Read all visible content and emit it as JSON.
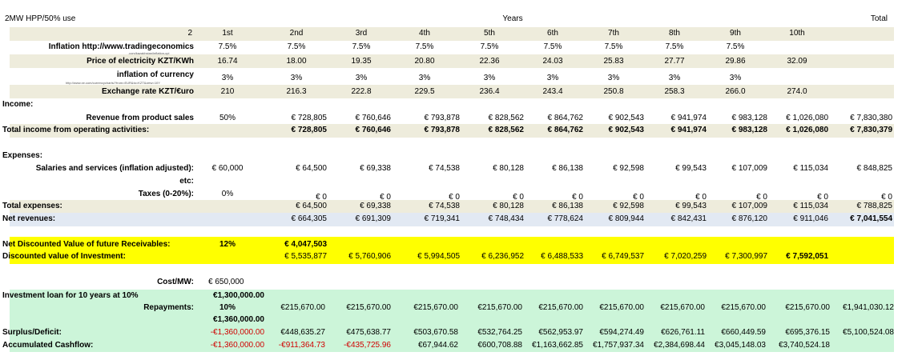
{
  "header": {
    "title": "2MW HPP/50% use",
    "years_label": "Years",
    "total_label": "Total"
  },
  "year_row": {
    "label": "2",
    "values": [
      "1st",
      "2nd",
      "3rd",
      "4th",
      "5th",
      "6th",
      "7th",
      "8th",
      "9th",
      "10th"
    ]
  },
  "inflation": {
    "label": "Inflation http://www.tradingeconomics",
    "sub": ".com/kazakhstan/inflation-cpi",
    "first": "7.5%",
    "values": [
      "7.5%",
      "7.5%",
      "7.5%",
      "7.5%",
      "7.5%",
      "7.5%",
      "7.5%",
      "7.5%",
      ""
    ]
  },
  "price": {
    "label": "Price of electricity KZT/KWh",
    "first": "16.74",
    "values": [
      "18.00",
      "19.35",
      "20.80",
      "22.36",
      "24.03",
      "25.83",
      "27.77",
      "29.86",
      "32.09"
    ]
  },
  "currency_inflation": {
    "label": "inflation of currency",
    "sub": "http://www.xe.com/currencycharts/?from=EUR&to=KZT&view=10Y",
    "first": "3%",
    "values": [
      "3%",
      "3%",
      "3%",
      "3%",
      "3%",
      "3%",
      "3%",
      "3%",
      ""
    ]
  },
  "exchange": {
    "label": "Exchange rate KZT/€uro",
    "first": "210",
    "values": [
      "216.3",
      "222.8",
      "229.5",
      "236.4",
      "243.4",
      "250.8",
      "258.3",
      "266.0",
      "274.0"
    ]
  },
  "income": {
    "label": "Income:"
  },
  "revenue": {
    "label": "Revenue from product sales",
    "first": "50%",
    "values": [
      "€ 728,805",
      "€ 760,646",
      "€ 793,878",
      "€ 828,562",
      "€ 864,762",
      "€ 902,543",
      "€ 941,974",
      "€ 983,128",
      "€ 1,026,080"
    ],
    "total": "€ 7,830,380"
  },
  "total_income": {
    "label": "Total income from operating activities:",
    "values": [
      "€ 728,805",
      "€ 760,646",
      "€ 793,878",
      "€ 828,562",
      "€ 864,762",
      "€ 902,543",
      "€ 941,974",
      "€ 983,128",
      "€ 1,026,080"
    ],
    "total": "€ 7,830,379"
  },
  "expenses": {
    "label": "Expenses:"
  },
  "salaries": {
    "label": "Salaries and services (inflation adjusted):",
    "sub": "etc:",
    "first": "€ 60,000",
    "values": [
      "€ 64,500",
      "€ 69,338",
      "€ 74,538",
      "€ 80,128",
      "€ 86,138",
      "€ 92,598",
      "€ 99,543",
      "€ 107,009",
      "€ 115,034"
    ],
    "total": "€ 848,825"
  },
  "taxes": {
    "label": "Taxes (0-20%):",
    "first": "0%",
    "values": [
      "€ 0",
      "€ 0",
      "€ 0",
      "€ 0",
      "€ 0",
      "€ 0",
      "€ 0",
      "€ 0",
      "€ 0"
    ],
    "total": "€ 0"
  },
  "total_expenses": {
    "label": "Total expenses:",
    "values": [
      "€ 64,500",
      "€ 69,338",
      "€ 74,538",
      "€ 80,128",
      "€ 86,138",
      "€ 92,598",
      "€ 99,543",
      "€ 107,009",
      "€ 115,034"
    ],
    "total": "€ 788,825"
  },
  "net_revenues": {
    "label": "Net revenues:",
    "values": [
      "€ 664,305",
      "€ 691,309",
      "€ 719,341",
      "€ 748,434",
      "€ 778,624",
      "€ 809,944",
      "€ 842,431",
      "€ 876,120",
      "€ 911,046"
    ],
    "total": "€ 7,041,554"
  },
  "ndv": {
    "label": "Net Discounted Value of future Receivables:",
    "rate": "12%",
    "value": "€ 4,047,503"
  },
  "dvi": {
    "label": "Discounted value of Investment:",
    "values": [
      "€ 5,535,877",
      "€ 5,760,906",
      "€ 5,994,505",
      "€ 6,236,952",
      "€ 6,488,533",
      "€ 6,749,537",
      "€ 7,020,259",
      "€ 7,300,997",
      "€ 7,592,051"
    ]
  },
  "cost": {
    "label": "Cost/MW:",
    "value": "€ 650,000"
  },
  "loan": {
    "label": "Investment loan for 10 years at 10%",
    "value": "€1,300,000.00"
  },
  "repayments": {
    "label": "Repayments:",
    "rate": "10%",
    "values": [
      "€215,670.00",
      "€215,670.00",
      "€215,670.00",
      "€215,670.00",
      "€215,670.00",
      "€215,670.00",
      "€215,670.00",
      "€215,670.00",
      "€215,670.00"
    ],
    "total": "€1,941,030.12"
  },
  "loan_balance": {
    "value": "€1,360,000.00"
  },
  "surplus": {
    "label": "Surplus/Deficit:",
    "first": "-€1,360,000.00",
    "values": [
      "€448,635.27",
      "€475,638.77",
      "€503,670.58",
      "€532,764.25",
      "€562,953.97",
      "€594,274.49",
      "€626,761.11",
      "€660,449.59",
      "€695,376.15"
    ],
    "total": "€5,100,524.08"
  },
  "cashflow": {
    "label": "Accumulated Cashflow:",
    "first": "-€1,360,000.00",
    "values": [
      "-€911,364.73",
      "-€435,725.96",
      "€67,944.62",
      "€600,708.88",
      "€1,163,662.85",
      "€1,757,937.34",
      "€2,384,698.44",
      "€3,045,148.03",
      "€3,740,524.18"
    ]
  }
}
